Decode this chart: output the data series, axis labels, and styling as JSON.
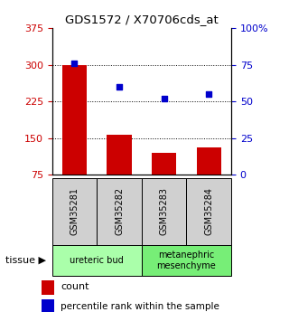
{
  "title": "GDS1572 / X70706cds_at",
  "samples": [
    "GSM35281",
    "GSM35282",
    "GSM35283",
    "GSM35284"
  ],
  "counts": [
    300,
    157,
    120,
    130
  ],
  "percentiles": [
    76,
    60,
    52,
    55
  ],
  "left_ylim": [
    75,
    375
  ],
  "left_yticks": [
    75,
    150,
    225,
    300,
    375
  ],
  "right_ylim": [
    0,
    100
  ],
  "right_yticks": [
    0,
    25,
    50,
    75,
    100
  ],
  "right_yticklabels": [
    "0",
    "25",
    "50",
    "75",
    "100%"
  ],
  "bar_color": "#cc0000",
  "dot_color": "#0000cc",
  "tissue_groups": [
    {
      "label": "ureteric bud",
      "cols": [
        0,
        1
      ],
      "color": "#aaffaa"
    },
    {
      "label": "metanephric\nmesenchyme",
      "cols": [
        2,
        3
      ],
      "color": "#77ee77"
    }
  ],
  "grid_yticks": [
    150,
    225,
    300
  ],
  "left_tick_color": "#cc0000",
  "right_tick_color": "#0000cc",
  "legend_count_color": "#cc0000",
  "legend_pct_color": "#0000cc",
  "sample_box_color": "#d0d0d0"
}
